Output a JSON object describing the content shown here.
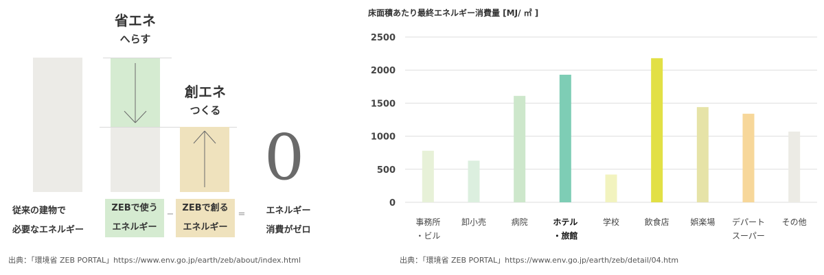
{
  "left": {
    "save": {
      "title": "省エネ",
      "sub": "へらす"
    },
    "create": {
      "title": "創エネ",
      "sub": "つくる"
    },
    "zero_glyph": "0",
    "labels": {
      "conventional_l1": "従来の建物で",
      "conventional_l2": "必要なエネルギー",
      "zeb_use_l1": "ZEBで使う",
      "zeb_use_l2": "エネルギー",
      "minus": "−",
      "zeb_create_l1": "ZEBで創る",
      "zeb_create_l2": "エネルギー",
      "equals": "=",
      "zero_l1": "エネルギー",
      "zero_l2": "消費がゼロ"
    },
    "source": "出典：「環境省 ZEB PORTAL」https://www.env.go.jp/earth/zeb/about/index.html",
    "colors": {
      "gray": "#ecebe7",
      "green": "#d5ebd1",
      "tan": "#efe2bd",
      "zero": "#6a6a6a"
    }
  },
  "chart_data": {
    "type": "bar",
    "title": "床面積あたり最終エネルギー消費量 [MJ/ ㎡ ]",
    "categories": [
      [
        "事務所",
        "・ビル"
      ],
      [
        "卸小売"
      ],
      [
        "病院"
      ],
      [
        "ホテル",
        "・旅館"
      ],
      [
        "学校"
      ],
      [
        "飲食店"
      ],
      [
        "娯楽場"
      ],
      [
        "デパート",
        "スーパー"
      ],
      [
        "その他"
      ]
    ],
    "values": [
      780,
      630,
      1610,
      1930,
      420,
      2180,
      1440,
      1340,
      1070
    ],
    "colors": [
      "#e7f1d8",
      "#dcefdf",
      "#cde7cb",
      "#7ecdb5",
      "#f2f3bf",
      "#e2e045",
      "#e6e3a7",
      "#f7d79a",
      "#ecebe5"
    ],
    "highlight_index": 3,
    "ylim": [
      0,
      2500
    ],
    "yticks": [
      0,
      500,
      1000,
      1500,
      2000,
      2500
    ],
    "grid": true
  },
  "source_right": "出典：「環境省 ZEB PORTAL」https://www.env.go.jp/earth/zeb/detail/04.htm"
}
